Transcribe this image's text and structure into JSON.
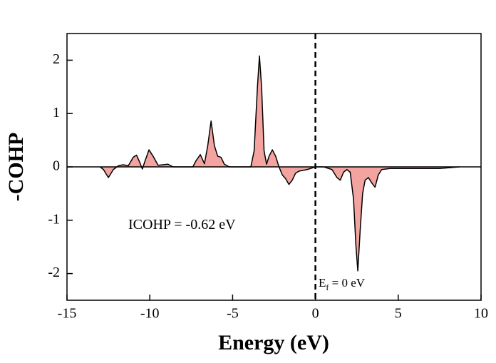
{
  "chart_data": {
    "type": "area",
    "x_label": "Energy (eV)",
    "y_label": "-COHP",
    "annotation": "ICOHP = -0.62  eV",
    "fermi_label": {
      "main": "E",
      "subscript": "f",
      "suffix": " = 0 eV"
    },
    "reference_lines": {
      "x": 0,
      "y": 0
    },
    "xlim": [
      -15,
      10
    ],
    "ylim": [
      -2.5,
      2.5
    ],
    "xticks": [
      -15,
      -10,
      -5,
      0,
      5,
      10
    ],
    "yticks": [
      -2,
      -1,
      0,
      1,
      2
    ],
    "fill_color": "#f4a4a0",
    "line_color": "#000000",
    "x": [
      -13,
      -12.8,
      -12.5,
      -12.2,
      -11.9,
      -11.6,
      -11.3,
      -11.0,
      -10.8,
      -10.6,
      -10.45,
      -10.3,
      -10.05,
      -9.8,
      -9.5,
      -9.2,
      -8.9,
      -8.6,
      -7.4,
      -7.2,
      -6.95,
      -6.7,
      -6.5,
      -6.3,
      -6.1,
      -5.9,
      -5.7,
      -5.5,
      -5.2,
      -3.9,
      -3.7,
      -3.5,
      -3.38,
      -3.25,
      -3.1,
      -2.95,
      -2.8,
      -2.6,
      -2.4,
      -2.2,
      -2.0,
      -1.8,
      -1.6,
      -1.4,
      -1.2,
      -1.0,
      -0.5,
      0,
      0.5,
      1.0,
      1.3,
      1.5,
      1.7,
      1.9,
      2.1,
      2.3,
      2.45,
      2.56,
      2.7,
      2.85,
      3.0,
      3.2,
      3.4,
      3.6,
      3.8,
      4.0,
      4.5,
      6,
      7.5,
      8.7
    ],
    "values": [
      0,
      -0.05,
      -0.2,
      -0.05,
      0.02,
      0.04,
      0.02,
      0.18,
      0.22,
      0.08,
      -0.04,
      0.1,
      0.32,
      0.2,
      0.03,
      0.04,
      0.05,
      0,
      0,
      0.12,
      0.23,
      0.06,
      0.4,
      0.86,
      0.4,
      0.2,
      0.18,
      0.05,
      0,
      0,
      0.3,
      1.5,
      2.08,
      1.5,
      0.3,
      0.05,
      0.2,
      0.32,
      0.2,
      0,
      -0.15,
      -0.22,
      -0.33,
      -0.25,
      -0.12,
      -0.08,
      -0.05,
      0,
      0,
      -0.05,
      -0.2,
      -0.25,
      -0.1,
      -0.05,
      -0.1,
      -0.6,
      -1.5,
      -1.95,
      -1.2,
      -0.5,
      -0.25,
      -0.2,
      -0.3,
      -0.38,
      -0.15,
      -0.05,
      -0.03,
      -0.03,
      -0.03,
      0
    ]
  }
}
